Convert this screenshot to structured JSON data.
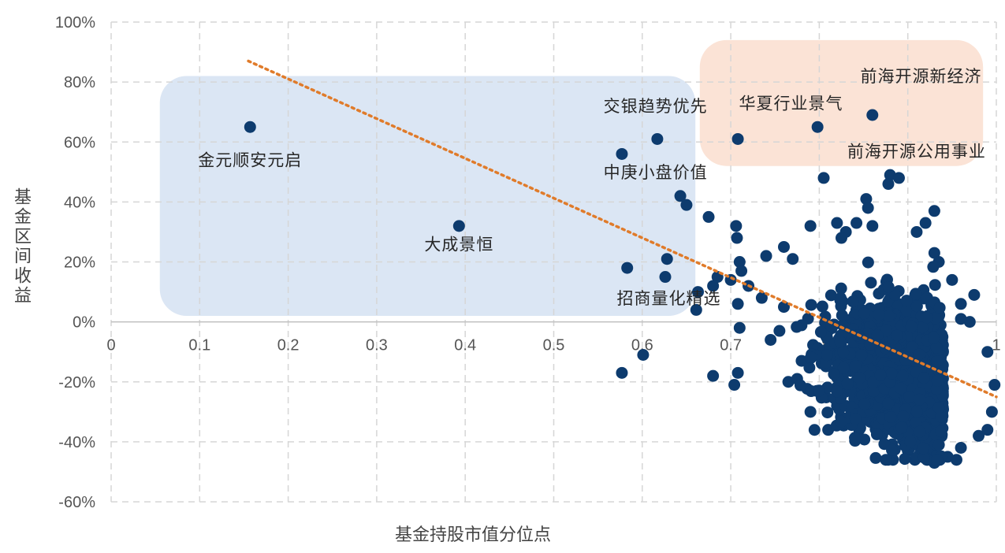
{
  "chart_data": {
    "type": "scatter",
    "xlabel": "基金持股市值分位点",
    "ylabel": "基金区间收益",
    "xlim": [
      0,
      1
    ],
    "ylim": [
      -60,
      100
    ],
    "x_ticks": [
      0,
      0.1,
      0.2,
      0.3,
      0.4,
      0.5,
      0.6,
      0.7,
      0.8,
      0.9,
      1
    ],
    "x_tick_labels": [
      "0",
      "0.1",
      "0.2",
      "0.3",
      "0.4",
      "0.5",
      "0.6",
      "0.7",
      "0.8",
      "0.9",
      "1"
    ],
    "y_ticks": [
      -60,
      -40,
      -20,
      0,
      20,
      40,
      60,
      80,
      100
    ],
    "y_tick_labels": [
      "-60%",
      "-40%",
      "-20%",
      "0%",
      "20%",
      "40%",
      "60%",
      "80%",
      "100%"
    ],
    "grid": true,
    "colors": {
      "points": "#0d3b6e",
      "trendline": "#e07b2a",
      "highlight_blue": "#dbe6f4",
      "highlight_orange": "#fbe3d6"
    },
    "trendline": {
      "style": "dotted",
      "points": [
        [
          0.155,
          87
        ],
        [
          1.0,
          -25
        ]
      ]
    },
    "highlight_regions": [
      {
        "name": "blue",
        "x": [
          0.055,
          0.66
        ],
        "y": [
          2,
          82
        ]
      },
      {
        "name": "orange",
        "x": [
          0.665,
          0.985
        ],
        "y": [
          52,
          94
        ]
      }
    ],
    "labeled_points": [
      {
        "label": "金元顺安元启",
        "x": 0.157,
        "y": 65
      },
      {
        "label": "大成景恒",
        "x": 0.393,
        "y": 32
      },
      {
        "label": "交银趋势优先",
        "x": 0.617,
        "y": 61
      },
      {
        "label": "中庚小盘价值",
        "x": 0.577,
        "y": 56
      },
      {
        "label": "招商量化精选",
        "x": 0.583,
        "y": 18
      },
      {
        "label": "华夏行业景气",
        "x": 0.708,
        "y": 61
      },
      {
        "label": "前海开源公用事业",
        "x": 0.798,
        "y": 65
      },
      {
        "label": "前海开源新经济",
        "x": 0.86,
        "y": 69
      }
    ],
    "annotations": [
      {
        "text": "金元顺安元启",
        "x": 0.157,
        "y": 52,
        "anchor": "middle"
      },
      {
        "text": "大成景恒",
        "x": 0.393,
        "y": 24,
        "anchor": "middle"
      },
      {
        "text": "交银趋势优先",
        "x": 0.615,
        "y": 70,
        "anchor": "middle"
      },
      {
        "text": "中庚小盘价值",
        "x": 0.615,
        "y": 48,
        "anchor": "middle"
      },
      {
        "text": "招商量化精选",
        "x": 0.63,
        "y": 6,
        "anchor": "middle"
      },
      {
        "text": "华夏行业景气",
        "x": 0.768,
        "y": 71,
        "anchor": "middle"
      },
      {
        "text": "前海开源新经济",
        "x": 0.915,
        "y": 80,
        "anchor": "middle"
      },
      {
        "text": "前海开源公用事业",
        "x": 0.91,
        "y": 55,
        "anchor": "middle"
      }
    ],
    "other_points": [
      [
        0.643,
        42
      ],
      [
        0.65,
        39
      ],
      [
        0.675,
        35
      ],
      [
        0.628,
        21
      ],
      [
        0.626,
        15
      ],
      [
        0.663,
        10
      ],
      [
        0.661,
        4
      ],
      [
        0.68,
        12
      ],
      [
        0.685,
        15
      ],
      [
        0.7,
        14
      ],
      [
        0.706,
        32
      ],
      [
        0.707,
        28
      ],
      [
        0.71,
        20
      ],
      [
        0.712,
        17
      ],
      [
        0.708,
        6
      ],
      [
        0.71,
        -2
      ],
      [
        0.577,
        -17
      ],
      [
        0.601,
        -11
      ],
      [
        0.68,
        -18
      ],
      [
        0.704,
        -21
      ],
      [
        0.708,
        -17
      ],
      [
        0.805,
        48
      ],
      [
        0.88,
        49
      ],
      [
        0.878,
        46
      ],
      [
        0.89,
        48
      ],
      [
        0.853,
        41
      ],
      [
        0.855,
        38
      ],
      [
        0.86,
        32
      ],
      [
        0.82,
        33
      ],
      [
        0.83,
        30
      ],
      [
        0.842,
        33
      ],
      [
        0.825,
        28
      ],
      [
        0.93,
        37
      ],
      [
        0.92,
        33
      ],
      [
        0.91,
        30
      ],
      [
        0.79,
        32
      ],
      [
        0.76,
        25
      ],
      [
        0.77,
        21
      ],
      [
        0.74,
        22
      ],
      [
        0.72,
        12
      ],
      [
        0.735,
        8
      ],
      [
        0.76,
        5
      ],
      [
        0.755,
        -3
      ],
      [
        0.745,
        -6
      ],
      [
        0.78,
        -13
      ],
      [
        0.765,
        -20
      ],
      [
        0.775,
        -19
      ],
      [
        0.8,
        -23
      ],
      [
        0.82,
        -28
      ],
      [
        0.79,
        -30
      ],
      [
        0.81,
        -36
      ],
      [
        0.85,
        -31
      ],
      [
        0.87,
        -35
      ],
      [
        0.9,
        -43
      ],
      [
        0.93,
        -47
      ],
      [
        0.945,
        -45
      ],
      [
        0.955,
        -46
      ],
      [
        0.96,
        -42
      ],
      [
        0.98,
        -38
      ],
      [
        0.99,
        -36
      ],
      [
        0.995,
        -30
      ],
      [
        0.998,
        -21
      ],
      [
        0.99,
        -10
      ],
      [
        0.97,
        0
      ],
      [
        0.96,
        6
      ],
      [
        0.975,
        9
      ],
      [
        0.95,
        14
      ],
      [
        0.935,
        20
      ],
      [
        0.93,
        23
      ],
      [
        0.96,
        1
      ]
    ]
  }
}
